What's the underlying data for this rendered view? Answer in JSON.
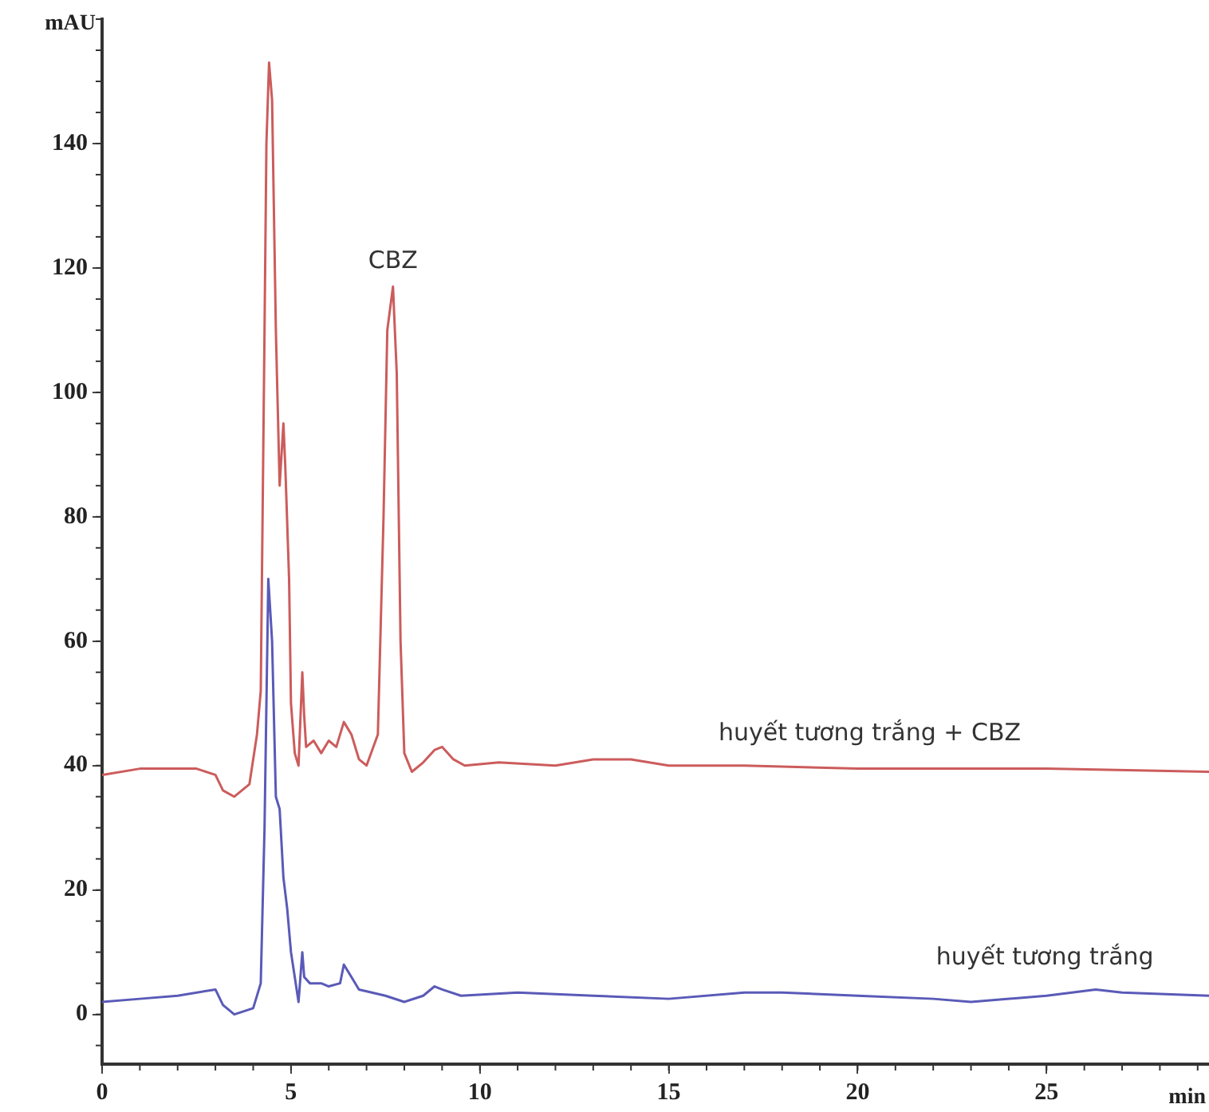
{
  "chart_data": {
    "type": "line",
    "xlabel": "min",
    "ylabel": "mAU",
    "xlim": [
      0,
      29.3
    ],
    "ylim": [
      -8,
      160
    ],
    "xticks": [
      0,
      5,
      10,
      15,
      20,
      25
    ],
    "yticks": [
      0,
      20,
      40,
      60,
      80,
      100,
      120,
      140
    ],
    "grid": false,
    "legend": false,
    "marker": "none",
    "line_style": "solid",
    "annotations": [
      {
        "text": "CBZ",
        "x": 7.7,
        "y": 117
      }
    ],
    "series": [
      {
        "name": "huyết tương trắng + CBZ",
        "color": "#cc5c5c",
        "x": [
          0,
          1,
          2.5,
          3.0,
          3.2,
          3.5,
          3.9,
          4.1,
          4.2,
          4.3,
          4.35,
          4.42,
          4.5,
          4.6,
          4.7,
          4.8,
          4.85,
          4.95,
          5.0,
          5.1,
          5.2,
          5.3,
          5.35,
          5.4,
          5.6,
          5.8,
          6.0,
          6.2,
          6.4,
          6.6,
          6.8,
          7.0,
          7.3,
          7.45,
          7.55,
          7.7,
          7.8,
          7.9,
          8.0,
          8.2,
          8.5,
          8.8,
          9.0,
          9.3,
          9.6,
          10.5,
          12,
          13,
          14,
          15,
          17,
          20,
          22,
          25,
          29.3
        ],
        "values": [
          38.5,
          39.5,
          39.5,
          38.5,
          36,
          35,
          37,
          45,
          52,
          110,
          140,
          153,
          147,
          110,
          85,
          95,
          88,
          70,
          50,
          42,
          40,
          55,
          48,
          43,
          44,
          42,
          44,
          43,
          47,
          45,
          41,
          40,
          45,
          80,
          110,
          117,
          103,
          60,
          42,
          39,
          40.5,
          42.5,
          43,
          41,
          40,
          40.5,
          40,
          41,
          41,
          40,
          40,
          39.5,
          39.5,
          39.5,
          39
        ]
      },
      {
        "name": "huyết tương trắng",
        "color": "#5a5ab8",
        "x": [
          0,
          1,
          2,
          3.0,
          3.2,
          3.5,
          4.0,
          4.2,
          4.3,
          4.4,
          4.5,
          4.6,
          4.7,
          4.8,
          4.9,
          5.0,
          5.1,
          5.2,
          5.3,
          5.35,
          5.5,
          5.8,
          6.0,
          6.3,
          6.4,
          6.6,
          6.8,
          7.5,
          8.0,
          8.5,
          8.8,
          9.0,
          9.5,
          11,
          13,
          15,
          17,
          18,
          20,
          22,
          23,
          25,
          26.3,
          27,
          29.3
        ],
        "values": [
          2,
          2.5,
          3,
          4,
          1.5,
          0,
          1,
          5,
          30,
          70,
          60,
          35,
          33,
          22,
          17,
          10,
          6,
          2,
          10,
          6,
          5,
          5,
          4.5,
          5,
          8,
          6,
          4,
          3,
          2,
          3,
          4.5,
          4,
          3,
          3.5,
          3,
          2.5,
          3.5,
          3.5,
          3,
          2.5,
          2,
          3,
          4,
          3.5,
          3
        ]
      }
    ]
  }
}
